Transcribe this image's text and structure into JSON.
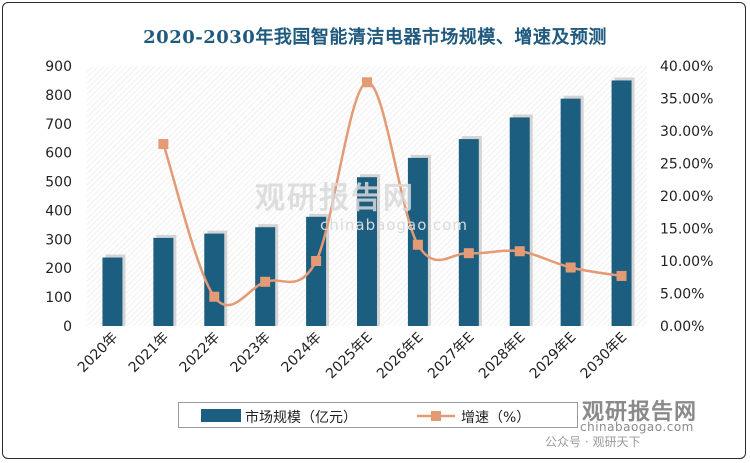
{
  "chart_data": {
    "type": "bar",
    "title": "2020-2030年我国智能清洁电器市场规模、增速及预测",
    "categories": [
      "2020年",
      "2021年",
      "2022年",
      "2023年",
      "2024年",
      "2025年E",
      "2026年E",
      "2027年E",
      "2028年E",
      "2029年E",
      "2030年E"
    ],
    "series": [
      {
        "name": "市场规模（亿元）",
        "type": "bar",
        "axis": "left",
        "color": "#1b5e80",
        "values": [
          237,
          305,
          320,
          342,
          378,
          515,
          582,
          647,
          722,
          787,
          850
        ]
      },
      {
        "name": "增速（%）",
        "type": "line",
        "axis": "right",
        "color": "#e49b75",
        "values": [
          null,
          28.0,
          4.5,
          6.8,
          10.0,
          37.5,
          12.5,
          11.2,
          11.5,
          9.0,
          7.7
        ]
      }
    ],
    "y_left": {
      "ylim": [
        0,
        900
      ],
      "ticks": [
        "0",
        "100",
        "200",
        "300",
        "400",
        "500",
        "600",
        "700",
        "800",
        "900"
      ]
    },
    "y_right": {
      "ylim": [
        0,
        40
      ],
      "ticks": [
        "0.00%",
        "5.00%",
        "10.00%",
        "15.00%",
        "20.00%",
        "25.00%",
        "30.00%",
        "35.00%",
        "40.00%"
      ]
    },
    "legend_position": "bottom",
    "background_pattern": "hatched"
  },
  "watermark": {
    "text": "观研报告网",
    "url": "chinabaogao.com"
  },
  "brand": {
    "name": "观研报告网",
    "url": "chinabaogao.com",
    "wechat": "公众号 · 观研天下"
  },
  "colors": {
    "title": "#1f5a7e",
    "bar": "#1b5e80",
    "line": "#e49b75"
  }
}
